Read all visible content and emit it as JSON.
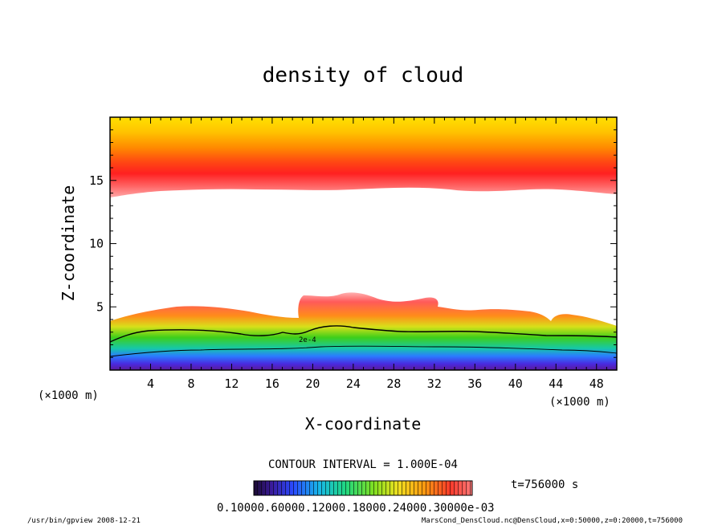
{
  "chart_data": {
    "type": "heatmap",
    "title": "density of cloud",
    "xlabel": "X-coordinate",
    "ylabel": "Z-coordinate",
    "x_unit": "(×1000 m)",
    "xlim": [
      0,
      50
    ],
    "ylim": [
      0,
      20
    ],
    "x_ticks": [
      "4",
      "8",
      "12",
      "16",
      "20",
      "24",
      "28",
      "32",
      "36",
      "40",
      "44",
      "48"
    ],
    "y_ticks": [
      "5",
      "10",
      "15"
    ],
    "contour_interval_text": "CONTOUR INTERVAL = 1.000E-04",
    "contour_label": "2e-4",
    "colorbar_labels_text": "0.10000.60000.12000.18000.24000.30000e-03",
    "time_label": "t=756000 s",
    "footer_left": "/usr/bin/gpview   2008-12-21",
    "footer_right": "MarsCond_DensCloud.nc@DensCloud,x=0:50000,z=0:20000,t=756000",
    "colors": {
      "upper_band": [
        "#ff7f7f",
        "#ff2a2a",
        "#ff4a0a",
        "#ff8a00",
        "#ffc400",
        "#ffe800"
      ],
      "lower_band": [
        "#ff5a5a",
        "#ff8c1a",
        "#d8e01a",
        "#3ecf1a",
        "#16c8a8",
        "#2a7cff",
        "#4a2ae0",
        "#5a1a9a"
      ]
    }
  }
}
